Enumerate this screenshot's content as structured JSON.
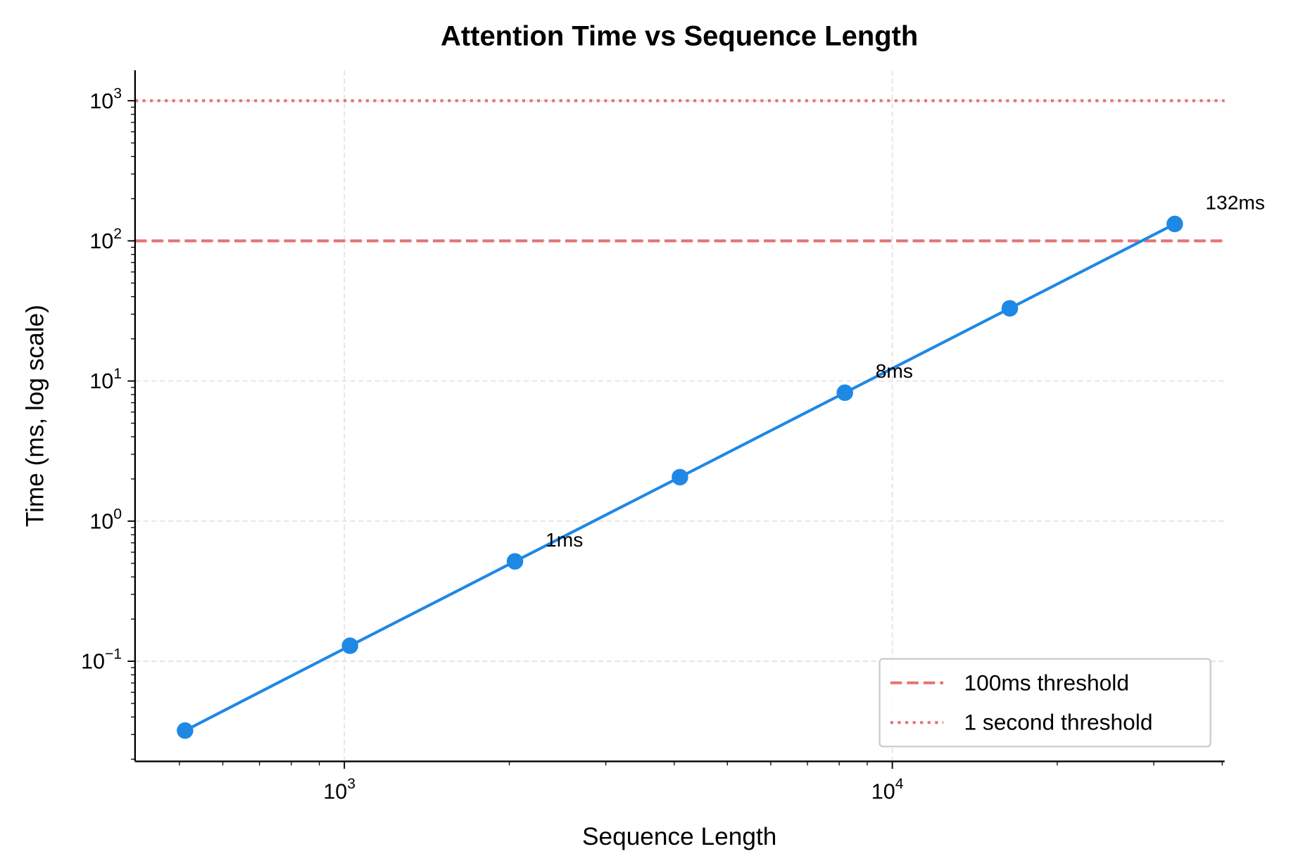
{
  "chart_data": {
    "type": "line",
    "title": "Attention Time vs Sequence Length",
    "xlabel": "Sequence Length",
    "ylabel": "Time (ms, log scale)",
    "xscale": "log",
    "yscale": "log",
    "xlim": [
      415,
      40400
    ],
    "ylim": [
      0.0193,
      1650
    ],
    "grid": true,
    "x_ticks": [
      {
        "value": 1000,
        "base": "10",
        "exp": "3"
      },
      {
        "value": 10000,
        "base": "10",
        "exp": "4"
      }
    ],
    "y_ticks": [
      {
        "value": 0.1,
        "base": "10",
        "exp": "−1"
      },
      {
        "value": 1,
        "base": "10",
        "exp": "0"
      },
      {
        "value": 10,
        "base": "10",
        "exp": "1"
      },
      {
        "value": 100,
        "base": "10",
        "exp": "2"
      },
      {
        "value": 1000,
        "base": "10",
        "exp": "3"
      }
    ],
    "series": [
      {
        "color": "#1e88e5",
        "marker": "circle",
        "x": [
          512,
          1024,
          2048,
          4096,
          8192,
          16384,
          32768
        ],
        "y": [
          0.032,
          0.129,
          0.516,
          2.06,
          8.25,
          33.0,
          132
        ]
      }
    ],
    "annotations": [
      {
        "x": 2048,
        "y": 0.516,
        "text": "1ms"
      },
      {
        "x": 8192,
        "y": 8.25,
        "text": "8ms"
      },
      {
        "x": 32768,
        "y": 132,
        "text": "132ms"
      }
    ],
    "hlines": [
      {
        "y": 100,
        "style": "dashed",
        "color": "#e57373",
        "label": "100ms threshold"
      },
      {
        "y": 1000,
        "style": "dotted",
        "color": "#e57373",
        "label": "1 second threshold"
      }
    ],
    "legend_position": "lower-right"
  }
}
